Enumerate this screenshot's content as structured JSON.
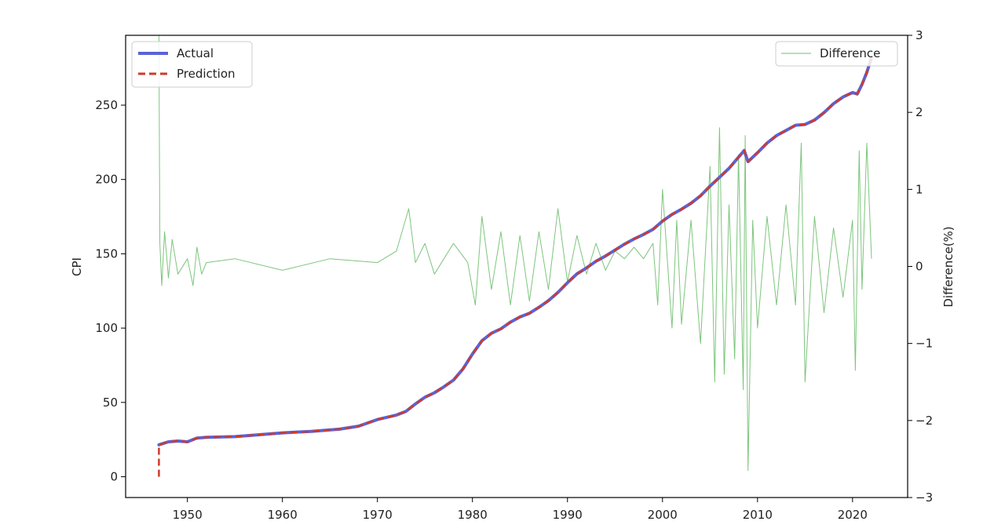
{
  "chart_data": {
    "type": "line",
    "xlabel": "",
    "ylabel_left": "CPI",
    "ylabel_right": "Difference(%)",
    "xlim": [
      1943.5,
      2025.8
    ],
    "ylim_left": [
      -14,
      297
    ],
    "ylim_right": [
      -3,
      3
    ],
    "xticks": [
      1950,
      1960,
      1970,
      1980,
      1990,
      2000,
      2010,
      2020
    ],
    "yticks_left": [
      0,
      50,
      100,
      150,
      200,
      250
    ],
    "yticks_right": [
      -3,
      -2,
      -1,
      0,
      1,
      2,
      3
    ],
    "ytick_labels_right": [
      "−3",
      "−2",
      "−1",
      "0",
      "1",
      "2",
      "3"
    ],
    "grid": false,
    "legend_left": {
      "placement": "upper-left",
      "entries": [
        {
          "label": "Actual",
          "color": "#5b63d6",
          "style": "solid"
        },
        {
          "label": "Prediction",
          "color": "#d03a2a",
          "style": "dashed"
        }
      ]
    },
    "legend_right": {
      "placement": "upper-right",
      "entries": [
        {
          "label": "Difference",
          "color": "#6fbf6f",
          "style": "solid"
        }
      ]
    },
    "series": [
      {
        "name": "Actual",
        "axis": "left",
        "color": "#5b63d6",
        "x": [
          1947,
          1948,
          1949,
          1950,
          1951,
          1952,
          1955,
          1957,
          1960,
          1963,
          1966,
          1968,
          1970,
          1972,
          1973,
          1974,
          1975,
          1976,
          1977,
          1978,
          1979,
          1980,
          1981,
          1982,
          1983,
          1984,
          1985,
          1986,
          1987,
          1988,
          1989,
          1990,
          1991,
          1992,
          1993,
          1994,
          1995,
          1996,
          1997,
          1998,
          1999,
          2000,
          2001,
          2002,
          2003,
          2004,
          2005,
          2006,
          2007,
          2008,
          2008.6,
          2009,
          2010,
          2011,
          2012,
          2013,
          2014,
          2015,
          2016,
          2017,
          2018,
          2019,
          2020,
          2020.5,
          2021,
          2021.5,
          2022
        ],
        "values": [
          21.5,
          23.5,
          24,
          23.5,
          26,
          26.5,
          27,
          28,
          29.5,
          30.5,
          32,
          34,
          38.5,
          41.5,
          44,
          49,
          53.5,
          56.5,
          60.5,
          65,
          72.5,
          82.5,
          91.5,
          96.5,
          99.5,
          104,
          107.5,
          110,
          114,
          118.5,
          124,
          130.5,
          136.5,
          140.5,
          145,
          148.5,
          152.5,
          156.5,
          160,
          163,
          166.5,
          172,
          176.5,
          180,
          184,
          189,
          195.5,
          201.5,
          207.5,
          215,
          219.5,
          212,
          218,
          224.5,
          229.5,
          233,
          236.5,
          237,
          240,
          245,
          251,
          255.5,
          258.5,
          257.5,
          264,
          272,
          282
        ]
      },
      {
        "name": "Prediction",
        "axis": "left",
        "color": "#d03a2a",
        "x": [
          1947,
          1947,
          1948,
          1949,
          1950,
          1951,
          1952,
          1955,
          1957,
          1960,
          1963,
          1966,
          1968,
          1970,
          1972,
          1973,
          1974,
          1975,
          1976,
          1977,
          1978,
          1979,
          1980,
          1981,
          1982,
          1983,
          1984,
          1985,
          1986,
          1987,
          1988,
          1989,
          1990,
          1991,
          1992,
          1993,
          1994,
          1995,
          1996,
          1997,
          1998,
          1999,
          2000,
          2001,
          2002,
          2003,
          2004,
          2005,
          2006,
          2007,
          2008,
          2008.6,
          2009,
          2010,
          2011,
          2012,
          2013,
          2014,
          2015,
          2016,
          2017,
          2018,
          2019,
          2020,
          2020.5,
          2021,
          2021.5,
          2022
        ],
        "values": [
          0,
          21.5,
          23.5,
          24,
          23.5,
          26,
          26.5,
          27,
          28,
          29.5,
          30.5,
          32,
          34,
          38.5,
          41.5,
          44,
          49,
          53.5,
          56.5,
          60.5,
          65,
          72.5,
          82.5,
          91.5,
          96.5,
          99.5,
          104,
          107.5,
          110,
          114,
          118.5,
          124,
          130.5,
          136.5,
          140.5,
          145,
          148.5,
          152.5,
          156.5,
          160,
          163,
          166.5,
          172,
          176.5,
          180,
          184,
          189,
          195.5,
          201.5,
          207.5,
          215,
          219.5,
          212,
          218,
          224.5,
          229.5,
          233,
          236.5,
          237,
          240,
          245,
          251,
          255.5,
          258.5,
          257.5,
          264,
          272,
          282
        ]
      },
      {
        "name": "Difference",
        "axis": "right",
        "color": "#6fbf6f",
        "x": [
          1947,
          1947.1,
          1947.3,
          1947.6,
          1948,
          1948.4,
          1949,
          1950,
          1950.6,
          1951,
          1951.5,
          1952,
          1955,
          1960,
          1965,
          1970,
          1972,
          1973.3,
          1974,
          1975,
          1976,
          1978,
          1979.5,
          1980.3,
          1981,
          1982,
          1983,
          1984,
          1985,
          1986,
          1987,
          1988,
          1989,
          1990,
          1991,
          1992,
          1993,
          1994,
          1995,
          1996,
          1997,
          1998,
          1999,
          1999.5,
          2000,
          2001,
          2001.5,
          2002,
          2003,
          2004,
          2005,
          2005.5,
          2006,
          2006.5,
          2007,
          2007.6,
          2008,
          2008.5,
          2008.7,
          2009,
          2009.5,
          2010,
          2011,
          2012,
          2013,
          2014,
          2014.6,
          2015,
          2016,
          2017,
          2018,
          2019,
          2020,
          2020.3,
          2020.7,
          2021,
          2021.5,
          2022
        ],
        "values": [
          3,
          0.3,
          -0.25,
          0.45,
          -0.15,
          0.35,
          -0.1,
          0.1,
          -0.25,
          0.25,
          -0.1,
          0.05,
          0.1,
          -0.05,
          0.1,
          0.05,
          0.2,
          0.75,
          0.05,
          0.3,
          -0.1,
          0.3,
          0.05,
          -0.5,
          0.65,
          -0.3,
          0.45,
          -0.5,
          0.4,
          -0.45,
          0.45,
          -0.3,
          0.75,
          -0.2,
          0.4,
          -0.1,
          0.3,
          -0.05,
          0.2,
          0.1,
          0.25,
          0.1,
          0.3,
          -0.5,
          1,
          -0.8,
          0.6,
          -0.75,
          0.6,
          -1,
          1.3,
          -1.5,
          1.8,
          -1.4,
          0.8,
          -1.2,
          1.45,
          -1.6,
          1.7,
          -2.65,
          0.6,
          -0.8,
          0.65,
          -0.5,
          0.8,
          -0.5,
          1.6,
          -1.5,
          0.65,
          -0.6,
          0.5,
          -0.4,
          0.6,
          -1.35,
          1.5,
          -0.3,
          1.6,
          0.1
        ]
      }
    ]
  }
}
